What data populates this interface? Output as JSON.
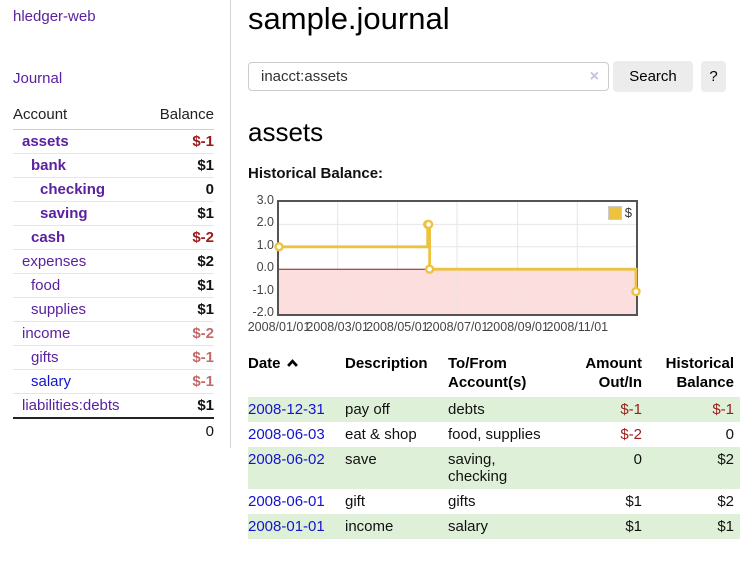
{
  "app": {
    "brand": "hledger-web"
  },
  "sidebar": {
    "nav": {
      "journal": "Journal"
    },
    "accounts": {
      "header": {
        "account": "Account",
        "balance": "Balance"
      },
      "rows": [
        {
          "account": "assets",
          "depth": 1,
          "bold": true,
          "blue": false,
          "balance": "$-1",
          "balance_class": "neg"
        },
        {
          "account": "bank",
          "depth": 2,
          "bold": true,
          "blue": false,
          "balance": "$1",
          "balance_class": ""
        },
        {
          "account": "checking",
          "depth": 3,
          "bold": true,
          "blue": false,
          "balance": "0",
          "balance_class": ""
        },
        {
          "account": "saving",
          "depth": 3,
          "bold": true,
          "blue": false,
          "balance": "$1",
          "balance_class": ""
        },
        {
          "account": "cash",
          "depth": 2,
          "bold": true,
          "blue": false,
          "balance": "$-2",
          "balance_class": "neg"
        },
        {
          "account": "expenses",
          "depth": 1,
          "bold": false,
          "blue": false,
          "balance": "$2",
          "balance_class": ""
        },
        {
          "account": "food",
          "depth": 2,
          "bold": false,
          "blue": false,
          "balance": "$1",
          "balance_class": ""
        },
        {
          "account": "supplies",
          "depth": 2,
          "bold": false,
          "blue": false,
          "balance": "$1",
          "balance_class": ""
        },
        {
          "account": "income",
          "depth": 1,
          "bold": false,
          "blue": false,
          "balance": "$-2",
          "balance_class": "negm"
        },
        {
          "account": "gifts",
          "depth": 2,
          "bold": false,
          "blue": false,
          "balance": "$-1",
          "balance_class": "negm"
        },
        {
          "account": "salary",
          "depth": 2,
          "bold": false,
          "blue": true,
          "balance": "$-1",
          "balance_class": "negm"
        },
        {
          "account": "liabilities:debts",
          "depth": 1,
          "bold": false,
          "blue": false,
          "balance": "$1",
          "balance_class": ""
        }
      ],
      "total": "0"
    }
  },
  "main": {
    "title": "sample.journal",
    "search": {
      "value": "inacct:assets",
      "clear_icon": "×",
      "button": "Search",
      "help_button": "?"
    },
    "account_heading": "assets",
    "section_label": "Historical Balance:"
  },
  "chart_data": {
    "type": "line",
    "title": "Historical Balance:",
    "series": [
      {
        "name": "$",
        "step": true,
        "color": "#edc240",
        "points": [
          [
            "2008-01-01",
            1
          ],
          [
            "2008-06-01",
            2
          ],
          [
            "2008-06-02",
            2
          ],
          [
            "2008-06-03",
            0
          ],
          [
            "2008-12-31",
            -1
          ]
        ]
      }
    ],
    "x_range": [
      "2008-01-01",
      "2008-12-31"
    ],
    "ylim": [
      -2,
      3
    ],
    "yticks": [
      3.0,
      2.0,
      1.0,
      0.0,
      -1.0,
      -2.0
    ],
    "xticks": [
      "2008/01/01",
      "2008/03/01",
      "2008/05/01",
      "2008/07/01",
      "2008/09/01",
      "2008/11/01"
    ],
    "grid": true,
    "legend_position": "top-right",
    "negative_region": {
      "below": 0,
      "fill": "#fcdede",
      "line_color": "#8b1a1a"
    }
  },
  "register": {
    "columns": [
      {
        "label": "Date",
        "sortable": true
      },
      {
        "label": "Description"
      },
      {
        "label": "To/From Account(s)"
      },
      {
        "label": "Amount Out/In",
        "align": "right"
      },
      {
        "label": "Historical Balance",
        "align": "right"
      }
    ],
    "rows": [
      {
        "date": "2008-12-31",
        "description": "pay off",
        "to_from": "debts",
        "amount": "$-1",
        "amount_class": "neg",
        "balance": "$-1",
        "balance_class": "neg"
      },
      {
        "date": "2008-06-03",
        "description": "eat & shop",
        "to_from": "food, supplies",
        "amount": "$-2",
        "amount_class": "neg",
        "balance": "0",
        "balance_class": ""
      },
      {
        "date": "2008-06-02",
        "description": "save",
        "to_from": "saving, checking",
        "amount": "0",
        "amount_class": "",
        "balance": "$2",
        "balance_class": ""
      },
      {
        "date": "2008-06-01",
        "description": "gift",
        "to_from": "gifts",
        "amount": "$1",
        "amount_class": "",
        "balance": "$2",
        "balance_class": ""
      },
      {
        "date": "2008-01-01",
        "description": "income",
        "to_from": "salary",
        "amount": "$1",
        "amount_class": "",
        "balance": "$1",
        "balance_class": ""
      }
    ]
  },
  "colors": {
    "accent_purple": "#5b21a0",
    "link_blue": "#1414cc",
    "negative_red": "#9c1a1a",
    "negative_muted": "#c46a6a",
    "row_green": "#dff0d8",
    "chart_line": "#edc240",
    "chart_negative_fill": "#fcdede",
    "chart_zero_line": "#8b1a1a",
    "grid_line": "#e6e6e6"
  }
}
